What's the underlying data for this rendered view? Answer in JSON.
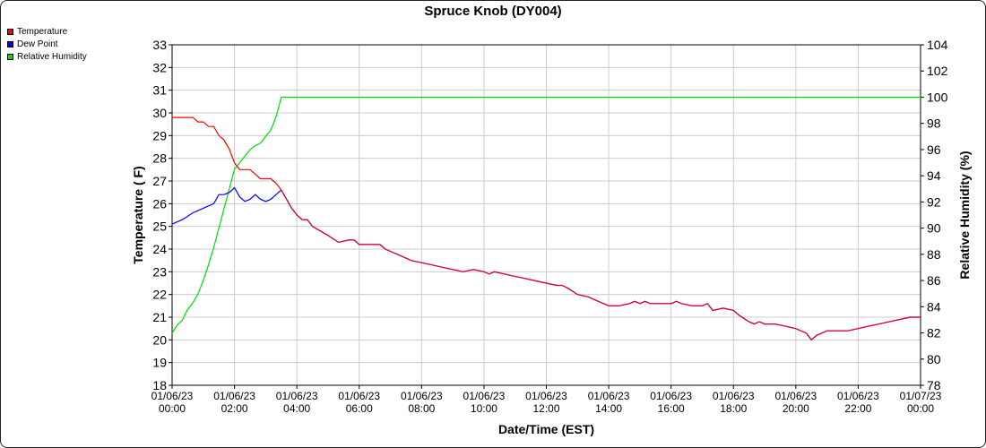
{
  "chart_data": {
    "type": "line",
    "title": "Spruce Knob (DY004)",
    "xlabel": "Date/Time (EST)",
    "ylabel": "Temperature ( F)",
    "y2label": "Relative Humidity (%)",
    "x_ticks": [
      [
        "01/06/23",
        "00:00"
      ],
      [
        "01/06/23",
        "02:00"
      ],
      [
        "01/06/23",
        "04:00"
      ],
      [
        "01/06/23",
        "06:00"
      ],
      [
        "01/06/23",
        "08:00"
      ],
      [
        "01/06/23",
        "10:00"
      ],
      [
        "01/06/23",
        "12:00"
      ],
      [
        "01/06/23",
        "14:00"
      ],
      [
        "01/06/23",
        "16:00"
      ],
      [
        "01/06/23",
        "18:00"
      ],
      [
        "01/06/23",
        "20:00"
      ],
      [
        "01/06/23",
        "22:00"
      ],
      [
        "01/07/23",
        "00:00"
      ]
    ],
    "xlim": [
      "01/06/23 00:00",
      "01/07/23 00:00"
    ],
    "ylim": [
      18,
      33
    ],
    "y_ticks": [
      18,
      19,
      20,
      21,
      22,
      23,
      24,
      25,
      26,
      27,
      28,
      29,
      30,
      31,
      32,
      33
    ],
    "y2lim": [
      78,
      104
    ],
    "y2_ticks": [
      78,
      80,
      82,
      84,
      86,
      88,
      90,
      92,
      94,
      96,
      98,
      100,
      102,
      104
    ],
    "grid": true,
    "legend": "top-left",
    "colors": {
      "temperature": "#ff0000",
      "dew_point": "#0000ff",
      "relative_humidity": "#00dd00",
      "overlap": "#cc0044",
      "grid": "#cccccc"
    },
    "series": [
      {
        "name": "Temperature",
        "axis": "left",
        "x": [
          "01/06/23 00:00",
          "01/06/23 00:20",
          "01/06/23 00:40",
          "01/06/23 00:50",
          "01/06/23 01:00",
          "01/06/23 01:10",
          "01/06/23 01:20",
          "01/06/23 01:30",
          "01/06/23 01:40",
          "01/06/23 01:50",
          "01/06/23 02:00",
          "01/06/23 02:10",
          "01/06/23 02:20",
          "01/06/23 02:30",
          "01/06/23 02:40",
          "01/06/23 02:50",
          "01/06/23 03:00",
          "01/06/23 03:10",
          "01/06/23 03:20",
          "01/06/23 03:30",
          "01/06/23 03:40",
          "01/06/23 03:50",
          "01/06/23 04:00",
          "01/06/23 04:10",
          "01/06/23 04:20",
          "01/06/23 04:30",
          "01/06/23 05:00",
          "01/06/23 05:20",
          "01/06/23 05:40",
          "01/06/23 05:50",
          "01/06/23 06:00",
          "01/06/23 06:20",
          "01/06/23 06:40",
          "01/06/23 06:50",
          "01/06/23 07:00",
          "01/06/23 07:20",
          "01/06/23 07:40",
          "01/06/23 08:00",
          "01/06/23 08:20",
          "01/06/23 08:40",
          "01/06/23 09:00",
          "01/06/23 09:20",
          "01/06/23 09:40",
          "01/06/23 10:00",
          "01/06/23 10:10",
          "01/06/23 10:20",
          "01/06/23 10:40",
          "01/06/23 11:00",
          "01/06/23 11:20",
          "01/06/23 11:40",
          "01/06/23 12:00",
          "01/06/23 12:20",
          "01/06/23 12:30",
          "01/06/23 12:40",
          "01/06/23 13:00",
          "01/06/23 13:20",
          "01/06/23 13:40",
          "01/06/23 14:00",
          "01/06/23 14:20",
          "01/06/23 14:40",
          "01/06/23 14:50",
          "01/06/23 15:00",
          "01/06/23 15:10",
          "01/06/23 15:20",
          "01/06/23 15:40",
          "01/06/23 16:00",
          "01/06/23 16:10",
          "01/06/23 16:20",
          "01/06/23 16:40",
          "01/06/23 17:00",
          "01/06/23 17:10",
          "01/06/23 17:20",
          "01/06/23 17:40",
          "01/06/23 18:00",
          "01/06/23 18:10",
          "01/06/23 18:30",
          "01/06/23 18:40",
          "01/06/23 18:50",
          "01/06/23 19:00",
          "01/06/23 19:20",
          "01/06/23 19:40",
          "01/06/23 20:00",
          "01/06/23 20:20",
          "01/06/23 20:30",
          "01/06/23 20:40",
          "01/06/23 21:00",
          "01/06/23 21:20",
          "01/06/23 21:40",
          "01/06/23 22:00",
          "01/06/23 22:20",
          "01/06/23 22:40",
          "01/06/23 23:00",
          "01/06/23 23:20",
          "01/06/23 23:40",
          "01/07/23 00:00"
        ],
        "values": [
          29.8,
          29.8,
          29.8,
          29.6,
          29.6,
          29.4,
          29.4,
          29.0,
          28.8,
          28.4,
          27.8,
          27.5,
          27.5,
          27.5,
          27.3,
          27.1,
          27.1,
          27.1,
          26.9,
          26.6,
          26.2,
          25.8,
          25.5,
          25.3,
          25.3,
          25.0,
          24.6,
          24.3,
          24.4,
          24.4,
          24.2,
          24.2,
          24.2,
          24.0,
          23.9,
          23.7,
          23.5,
          23.4,
          23.3,
          23.2,
          23.1,
          23.0,
          23.1,
          23.0,
          22.9,
          23.0,
          22.9,
          22.8,
          22.7,
          22.6,
          22.5,
          22.4,
          22.4,
          22.3,
          22.0,
          21.9,
          21.7,
          21.5,
          21.5,
          21.6,
          21.7,
          21.6,
          21.7,
          21.6,
          21.6,
          21.6,
          21.7,
          21.6,
          21.5,
          21.5,
          21.6,
          21.3,
          21.4,
          21.3,
          21.1,
          20.8,
          20.7,
          20.8,
          20.7,
          20.7,
          20.6,
          20.5,
          20.3,
          20.0,
          20.2,
          20.4,
          20.4,
          20.4,
          20.5,
          20.6,
          20.7,
          20.8,
          20.9,
          21.0,
          21.0
        ]
      },
      {
        "name": "Dew Point",
        "axis": "left",
        "x": [
          "01/06/23 00:00",
          "01/06/23 00:20",
          "01/06/23 00:40",
          "01/06/23 01:00",
          "01/06/23 01:20",
          "01/06/23 01:30",
          "01/06/23 01:40",
          "01/06/23 01:50",
          "01/06/23 02:00",
          "01/06/23 02:10",
          "01/06/23 02:20",
          "01/06/23 02:30",
          "01/06/23 02:40",
          "01/06/23 02:50",
          "01/06/23 03:00",
          "01/06/23 03:10",
          "01/06/23 03:20",
          "01/06/23 03:30"
        ],
        "values": [
          25.1,
          25.3,
          25.6,
          25.8,
          26.0,
          26.4,
          26.4,
          26.5,
          26.7,
          26.3,
          26.1,
          26.2,
          26.4,
          26.2,
          26.1,
          26.2,
          26.4,
          26.6
        ]
      },
      {
        "name": "Relative Humidity",
        "axis": "right",
        "x": [
          "01/06/23 00:00",
          "01/06/23 00:10",
          "01/06/23 00:20",
          "01/06/23 00:30",
          "01/06/23 00:40",
          "01/06/23 00:50",
          "01/06/23 01:00",
          "01/06/23 01:10",
          "01/06/23 01:20",
          "01/06/23 01:30",
          "01/06/23 01:40",
          "01/06/23 01:50",
          "01/06/23 02:00",
          "01/06/23 02:10",
          "01/06/23 02:20",
          "01/06/23 02:30",
          "01/06/23 02:40",
          "01/06/23 02:50",
          "01/06/23 03:00",
          "01/06/23 03:10",
          "01/06/23 03:20",
          "01/06/23 03:30",
          "01/07/23 00:00"
        ],
        "values": [
          82.0,
          82.6,
          83.0,
          83.8,
          84.3,
          85.0,
          86.0,
          87.2,
          88.5,
          90.0,
          91.5,
          93.0,
          94.5,
          95.0,
          95.5,
          96.0,
          96.3,
          96.5,
          97.0,
          97.5,
          98.5,
          100.0,
          100.0
        ]
      }
    ]
  }
}
